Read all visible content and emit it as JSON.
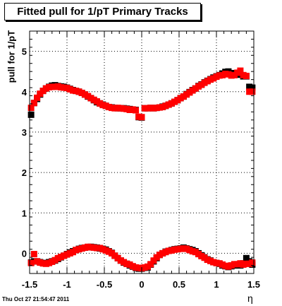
{
  "title": "Fitted pull for 1/pT  Primary Tracks",
  "timestamp": "Thu Oct 27 21:54:47 2011",
  "chart_data": {
    "type": "scatter",
    "title": "Fitted pull for 1/pT  Primary Tracks",
    "xlabel": "η",
    "ylabel": "pull for 1/pT",
    "xlim": [
      -1.5,
      1.5
    ],
    "ylim": [
      -0.5,
      5.5
    ],
    "grid": true,
    "x_ticks": [
      -1.5,
      -1,
      -0.5,
      0,
      0.5,
      1,
      1.5
    ],
    "x_tick_labels": [
      "-1.5",
      "-1",
      "-0.5",
      "0",
      "0.5",
      "1",
      "1.5"
    ],
    "y_ticks": [
      0,
      1,
      2,
      3,
      4,
      5
    ],
    "y_tick_labels": [
      "0",
      "1",
      "2",
      "3",
      "4",
      "5"
    ],
    "colors": {
      "black_series": "#000000",
      "red_series": "#ff0000"
    },
    "series": [
      {
        "color": "#000000",
        "marker": "square",
        "x": [
          -1.48,
          -1.44,
          -1.4,
          -1.36,
          -1.32,
          -1.28,
          -1.24,
          -1.2,
          -1.16,
          -1.12,
          -1.08,
          -1.04,
          -1.0,
          -0.96,
          -0.92,
          -0.88,
          -0.84,
          -0.8,
          -0.76,
          -0.72,
          -0.68,
          -0.64,
          -0.6,
          -0.56,
          -0.52,
          -0.48,
          -0.44,
          -0.4,
          -0.36,
          -0.32,
          -0.28,
          -0.24,
          -0.2,
          -0.16,
          -0.12,
          -0.08,
          -0.04,
          0.0,
          0.04,
          0.08,
          0.12,
          0.16,
          0.2,
          0.24,
          0.28,
          0.32,
          0.36,
          0.4,
          0.44,
          0.48,
          0.52,
          0.56,
          0.6,
          0.64,
          0.68,
          0.72,
          0.76,
          0.8,
          0.84,
          0.88,
          0.92,
          0.96,
          1.0,
          1.04,
          1.08,
          1.12,
          1.16,
          1.2,
          1.24,
          1.28,
          1.32,
          1.36,
          1.4,
          1.44,
          1.48
        ],
        "y": [
          3.43,
          3.72,
          3.82,
          3.93,
          4.02,
          4.08,
          4.12,
          4.15,
          4.16,
          4.14,
          4.13,
          4.12,
          4.1,
          4.07,
          4.04,
          4.02,
          4.0,
          3.97,
          3.93,
          3.88,
          3.84,
          3.79,
          3.74,
          3.71,
          3.68,
          3.65,
          3.62,
          3.61,
          3.6,
          3.59,
          3.59,
          3.59,
          3.58,
          3.57,
          3.55,
          3.55,
          3.37,
          3.36,
          3.59,
          3.59,
          3.6,
          3.59,
          3.6,
          3.61,
          3.63,
          3.65,
          3.68,
          3.71,
          3.75,
          3.79,
          3.84,
          3.88,
          3.94,
          3.99,
          4.04,
          4.08,
          4.14,
          4.18,
          4.23,
          4.27,
          4.31,
          4.35,
          4.38,
          4.41,
          4.45,
          4.49,
          4.5,
          4.46,
          4.43,
          4.44,
          4.42,
          4.38,
          4.38,
          4.12,
          4.1
        ]
      },
      {
        "color": "#ff0000",
        "marker": "square",
        "x": [
          -1.48,
          -1.44,
          -1.4,
          -1.36,
          -1.32,
          -1.28,
          -1.24,
          -1.2,
          -1.16,
          -1.12,
          -1.08,
          -1.04,
          -1.0,
          -0.96,
          -0.92,
          -0.88,
          -0.84,
          -0.8,
          -0.76,
          -0.72,
          -0.68,
          -0.64,
          -0.6,
          -0.56,
          -0.52,
          -0.48,
          -0.44,
          -0.4,
          -0.36,
          -0.32,
          -0.28,
          -0.24,
          -0.2,
          -0.16,
          -0.12,
          -0.08,
          -0.04,
          0.0,
          0.04,
          0.08,
          0.12,
          0.16,
          0.2,
          0.24,
          0.28,
          0.32,
          0.36,
          0.4,
          0.44,
          0.48,
          0.52,
          0.56,
          0.6,
          0.64,
          0.68,
          0.72,
          0.76,
          0.8,
          0.84,
          0.88,
          0.92,
          0.96,
          1.0,
          1.04,
          1.08,
          1.12,
          1.16,
          1.2,
          1.24,
          1.28,
          1.32,
          1.36,
          1.4,
          1.44,
          1.48
        ],
        "y": [
          3.6,
          3.72,
          3.85,
          3.95,
          4.02,
          4.08,
          4.11,
          4.12,
          4.12,
          4.13,
          4.11,
          4.1,
          4.09,
          4.06,
          4.03,
          4.02,
          4.0,
          3.97,
          3.93,
          3.89,
          3.84,
          3.8,
          3.76,
          3.71,
          3.67,
          3.65,
          3.62,
          3.6,
          3.59,
          3.6,
          3.59,
          3.58,
          3.57,
          3.55,
          3.56,
          3.54,
          3.38,
          3.37,
          3.59,
          3.59,
          3.6,
          3.59,
          3.6,
          3.61,
          3.62,
          3.65,
          3.68,
          3.71,
          3.75,
          3.79,
          3.84,
          3.88,
          3.93,
          3.98,
          4.03,
          4.08,
          4.13,
          4.17,
          4.22,
          4.26,
          4.3,
          4.33,
          4.37,
          4.4,
          4.41,
          4.44,
          4.43,
          4.4,
          4.41,
          4.47,
          4.52,
          4.41,
          4.39,
          4.0,
          4.0
        ]
      },
      {
        "color": "#000000",
        "marker": "square",
        "x": [
          -1.48,
          -1.44,
          -1.4,
          -1.36,
          -1.32,
          -1.28,
          -1.24,
          -1.2,
          -1.16,
          -1.12,
          -1.08,
          -1.04,
          -1.0,
          -0.96,
          -0.92,
          -0.88,
          -0.84,
          -0.8,
          -0.76,
          -0.72,
          -0.68,
          -0.64,
          -0.6,
          -0.56,
          -0.52,
          -0.48,
          -0.44,
          -0.4,
          -0.36,
          -0.32,
          -0.28,
          -0.24,
          -0.2,
          -0.16,
          -0.12,
          -0.08,
          -0.04,
          0.0,
          0.04,
          0.08,
          0.12,
          0.16,
          0.2,
          0.24,
          0.28,
          0.32,
          0.36,
          0.4,
          0.44,
          0.48,
          0.52,
          0.56,
          0.6,
          0.64,
          0.68,
          0.72,
          0.76,
          0.8,
          0.84,
          0.88,
          0.92,
          0.96,
          1.0,
          1.04,
          1.08,
          1.12,
          1.16,
          1.2,
          1.24,
          1.28,
          1.32,
          1.36,
          1.4,
          1.44,
          1.48
        ],
        "y": [
          -0.23,
          -0.2,
          -0.2,
          -0.22,
          -0.24,
          -0.25,
          -0.22,
          -0.2,
          -0.18,
          -0.14,
          -0.1,
          -0.06,
          -0.02,
          0.02,
          0.05,
          0.08,
          0.11,
          0.13,
          0.14,
          0.15,
          0.16,
          0.15,
          0.14,
          0.12,
          0.11,
          0.09,
          0.05,
          0.01,
          -0.06,
          -0.12,
          -0.18,
          -0.23,
          -0.26,
          -0.3,
          -0.33,
          -0.36,
          -0.38,
          -0.38,
          -0.36,
          -0.35,
          -0.28,
          -0.2,
          -0.12,
          -0.04,
          0.0,
          0.04,
          0.06,
          0.08,
          0.1,
          0.11,
          0.12,
          0.14,
          0.12,
          0.1,
          0.08,
          0.05,
          0.0,
          -0.05,
          -0.1,
          -0.15,
          -0.18,
          -0.22,
          -0.24,
          -0.26,
          -0.3,
          -0.32,
          -0.34,
          -0.32,
          -0.3,
          -0.3,
          -0.3,
          -0.25,
          -0.12,
          -0.2,
          -0.28
        ]
      },
      {
        "color": "#ff0000",
        "marker": "square",
        "x": [
          -1.48,
          -1.44,
          -1.4,
          -1.36,
          -1.32,
          -1.28,
          -1.24,
          -1.2,
          -1.16,
          -1.12,
          -1.08,
          -1.04,
          -1.0,
          -0.96,
          -0.92,
          -0.88,
          -0.84,
          -0.8,
          -0.76,
          -0.72,
          -0.68,
          -0.64,
          -0.6,
          -0.56,
          -0.52,
          -0.48,
          -0.44,
          -0.4,
          -0.36,
          -0.32,
          -0.28,
          -0.24,
          -0.2,
          -0.16,
          -0.12,
          -0.08,
          -0.04,
          0.0,
          0.04,
          0.08,
          0.12,
          0.16,
          0.2,
          0.24,
          0.28,
          0.32,
          0.36,
          0.4,
          0.44,
          0.48,
          0.52,
          0.56,
          0.6,
          0.64,
          0.68,
          0.72,
          0.76,
          0.8,
          0.84,
          0.88,
          0.92,
          0.96,
          1.0,
          1.04,
          1.08,
          1.12,
          1.16,
          1.2,
          1.24,
          1.28,
          1.32,
          1.36,
          1.4,
          1.44,
          1.48
        ],
        "y": [
          -0.24,
          -0.02,
          -0.2,
          -0.23,
          -0.25,
          -0.26,
          -0.24,
          -0.21,
          -0.17,
          -0.12,
          -0.09,
          -0.06,
          -0.03,
          0.0,
          0.03,
          0.08,
          0.1,
          0.12,
          0.14,
          0.16,
          0.15,
          0.14,
          0.13,
          0.13,
          0.1,
          0.07,
          0.04,
          0.0,
          -0.06,
          -0.12,
          -0.18,
          -0.22,
          -0.26,
          -0.28,
          -0.32,
          -0.35,
          -0.36,
          -0.37,
          -0.35,
          -0.33,
          -0.27,
          -0.18,
          -0.1,
          -0.04,
          0.0,
          0.03,
          0.06,
          0.07,
          0.09,
          0.1,
          0.11,
          0.12,
          0.11,
          0.08,
          0.05,
          0.03,
          -0.02,
          -0.07,
          -0.11,
          -0.16,
          -0.19,
          -0.22,
          -0.24,
          -0.25,
          -0.28,
          -0.31,
          -0.33,
          -0.3,
          -0.27,
          -0.27,
          -0.25,
          -0.28,
          -0.26,
          -0.26,
          -0.23
        ]
      }
    ]
  }
}
